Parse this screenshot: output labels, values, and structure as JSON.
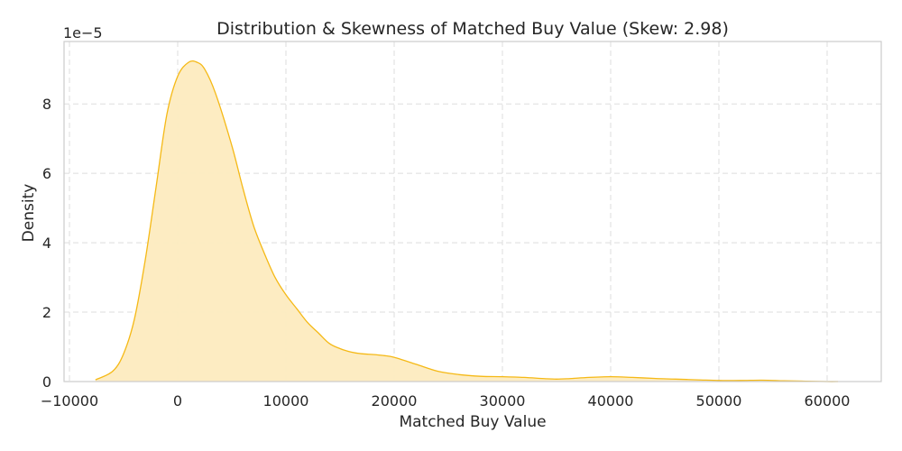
{
  "chart_data": {
    "type": "area",
    "title": "Distribution & Skewness of Matched Buy Value (Skew: 2.98)",
    "xlabel": "Matched Buy Value",
    "ylabel": "Density",
    "y_scale_label": "1e−5",
    "xlim": [
      -10500,
      65000
    ],
    "ylim": [
      0,
      9.8
    ],
    "x_ticks": [
      -10000,
      0,
      10000,
      20000,
      30000,
      40000,
      50000,
      60000
    ],
    "x_tick_labels": [
      "−10000",
      "0",
      "10000",
      "20000",
      "30000",
      "40000",
      "50000",
      "60000"
    ],
    "y_ticks": [
      0,
      2,
      4,
      6,
      8
    ],
    "y_tick_labels": [
      "0",
      "2",
      "4",
      "6",
      "8"
    ],
    "grid": true,
    "colors": {
      "line": "#f5b916",
      "fill": "#fdebbf",
      "grid": "#dddddd",
      "axes": "#cccccc"
    },
    "series": [
      {
        "x": [
          -7600,
          -6000,
          -5000,
          -4000,
          -3000,
          -2000,
          -1000,
          0,
          1000,
          1800,
          2500,
          3500,
          5000,
          6000,
          7000,
          8000,
          9000,
          10000,
          11000,
          12000,
          13000,
          14000,
          15000,
          16000,
          17000,
          18000,
          19000,
          20000,
          22000,
          24000,
          26000,
          28000,
          30000,
          32000,
          34000,
          35000,
          36000,
          38000,
          40000,
          42000,
          44000,
          46000,
          48000,
          50000,
          52000,
          54000,
          56000,
          58000,
          60000,
          61000
        ],
        "y": [
          0.05,
          0.3,
          0.8,
          1.8,
          3.5,
          5.6,
          7.7,
          8.8,
          9.2,
          9.2,
          9.0,
          8.3,
          6.8,
          5.6,
          4.5,
          3.7,
          3.0,
          2.5,
          2.1,
          1.7,
          1.4,
          1.1,
          0.95,
          0.85,
          0.8,
          0.78,
          0.75,
          0.7,
          0.5,
          0.3,
          0.2,
          0.15,
          0.14,
          0.12,
          0.08,
          0.07,
          0.08,
          0.12,
          0.14,
          0.12,
          0.09,
          0.07,
          0.05,
          0.03,
          0.03,
          0.04,
          0.02,
          0.01,
          0.0,
          0.0
        ]
      }
    ]
  }
}
